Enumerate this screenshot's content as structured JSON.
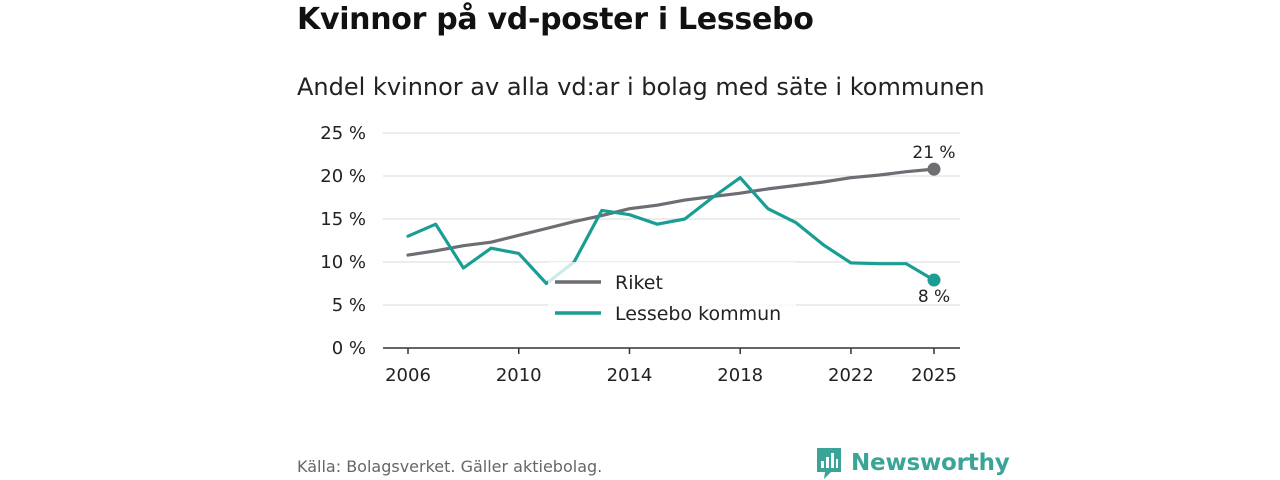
{
  "title": "Kvinnor på vd-poster i Lessebo",
  "subtitle": "Andel kvinnor av alla vd:ar i bolag med säte i kommunen",
  "source": "Källa: Bolagsverket. Gäller aktiebolag.",
  "brand": "Newsworthy",
  "colors": {
    "riket": "#6e6d74",
    "kommun": "#1a9e93",
    "brand": "#3aa597"
  },
  "chart_data": {
    "type": "line",
    "title": "Kvinnor på vd-poster i Lessebo",
    "subtitle": "Andel kvinnor av alla vd:ar i bolag med säte i kommunen",
    "xlabel": "",
    "ylabel": "",
    "xlim": [
      2006,
      2025
    ],
    "ylim": [
      0,
      25
    ],
    "x_ticks": [
      "2006",
      "2010",
      "2014",
      "2018",
      "2022",
      "2025"
    ],
    "y_ticks": [
      "0 %",
      "5 %",
      "10 %",
      "15 %",
      "20 %",
      "25 %"
    ],
    "x": [
      2006,
      2007,
      2008,
      2009,
      2010,
      2011,
      2012,
      2013,
      2014,
      2015,
      2016,
      2017,
      2018,
      2019,
      2020,
      2021,
      2022,
      2023,
      2024,
      2025
    ],
    "series": [
      {
        "name": "Riket",
        "values": [
          10.8,
          11.3,
          11.9,
          12.3,
          13.1,
          13.9,
          14.7,
          15.4,
          16.2,
          16.6,
          17.2,
          17.6,
          18.0,
          18.5,
          18.9,
          19.3,
          19.8,
          20.1,
          20.5,
          20.8
        ]
      },
      {
        "name": "Lessebo kommun",
        "values": [
          13.0,
          14.4,
          9.3,
          11.6,
          11.0,
          7.5,
          10.0,
          16.0,
          15.5,
          14.4,
          15.0,
          17.5,
          19.8,
          16.2,
          14.6,
          12.0,
          9.9,
          9.8,
          9.8,
          7.9
        ]
      }
    ],
    "end_labels": [
      "21 %",
      "8 %"
    ],
    "legend": {
      "position": "center-bottom",
      "entries": [
        "Riket",
        "Lessebo kommun"
      ]
    },
    "grid": true
  }
}
